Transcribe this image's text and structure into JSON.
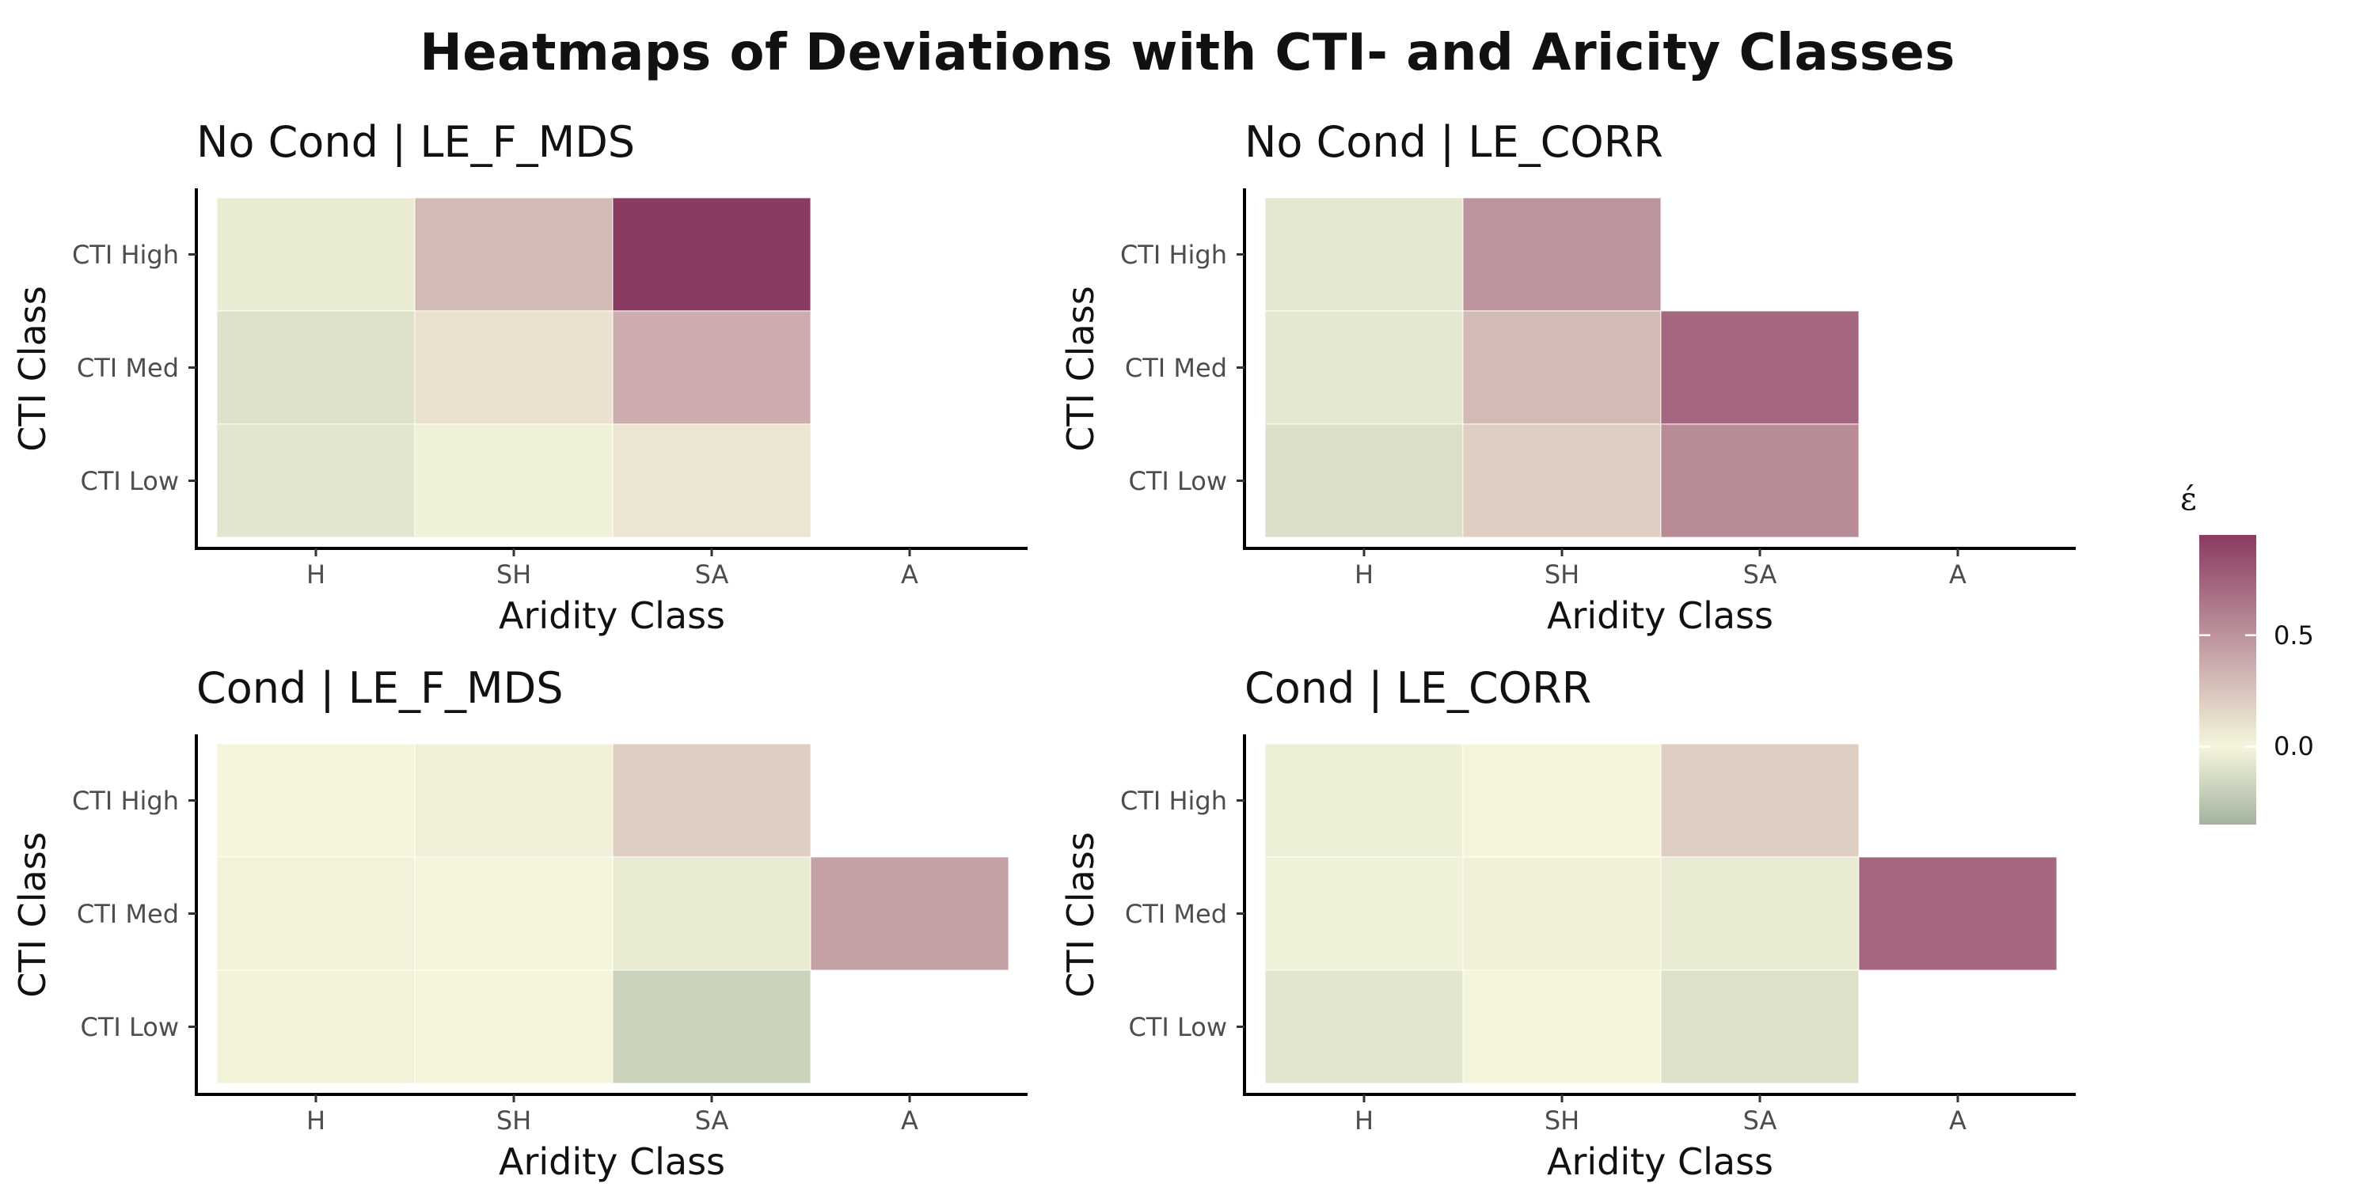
{
  "title": "Heatmaps of Deviations with CTI- and Aricity Classes",
  "chart_data": [
    {
      "type": "heatmap",
      "title": "No Cond | LE_F_MDS",
      "xlabel": "Aridity Class",
      "ylabel": "CTI Class",
      "x_categories": [
        "H",
        "SH",
        "SA",
        "A"
      ],
      "y_categories": [
        "CTI High",
        "CTI Med",
        "CTI Low"
      ],
      "cells": [
        {
          "x": "H",
          "y": "CTI High",
          "value": -0.05
        },
        {
          "x": "SH",
          "y": "CTI High",
          "value": 0.3
        },
        {
          "x": "SA",
          "y": "CTI High",
          "value": 0.95
        },
        {
          "x": "H",
          "y": "CTI Med",
          "value": -0.1
        },
        {
          "x": "SH",
          "y": "CTI Med",
          "value": 0.1
        },
        {
          "x": "SA",
          "y": "CTI Med",
          "value": 0.37
        },
        {
          "x": "H",
          "y": "CTI Low",
          "value": -0.08
        },
        {
          "x": "SH",
          "y": "CTI Low",
          "value": -0.02
        },
        {
          "x": "SA",
          "y": "CTI Low",
          "value": 0.08
        }
      ]
    },
    {
      "type": "heatmap",
      "title": "No Cond | LE_CORR",
      "xlabel": "Aridity Class",
      "ylabel": "CTI Class",
      "x_categories": [
        "H",
        "SH",
        "SA",
        "A"
      ],
      "y_categories": [
        "CTI High",
        "CTI Med",
        "CTI Low"
      ],
      "cells": [
        {
          "x": "H",
          "y": "CTI High",
          "value": -0.07
        },
        {
          "x": "SH",
          "y": "CTI High",
          "value": 0.5
        },
        {
          "x": "H",
          "y": "CTI Med",
          "value": -0.07
        },
        {
          "x": "SH",
          "y": "CTI Med",
          "value": 0.3
        },
        {
          "x": "SA",
          "y": "CTI Med",
          "value": 0.72
        },
        {
          "x": "H",
          "y": "CTI Low",
          "value": -0.11
        },
        {
          "x": "SH",
          "y": "CTI Low",
          "value": 0.2
        },
        {
          "x": "SA",
          "y": "CTI Low",
          "value": 0.54
        }
      ]
    },
    {
      "type": "heatmap",
      "title": "Cond | LE_F_MDS",
      "xlabel": "Aridity Class",
      "ylabel": "CTI Class",
      "x_categories": [
        "H",
        "SH",
        "SA",
        "A"
      ],
      "y_categories": [
        "CTI High",
        "CTI Med",
        "CTI Low"
      ],
      "cells": [
        {
          "x": "H",
          "y": "CTI High",
          "value": 0.0
        },
        {
          "x": "SH",
          "y": "CTI High",
          "value": 0.03
        },
        {
          "x": "SA",
          "y": "CTI High",
          "value": 0.2
        },
        {
          "x": "H",
          "y": "CTI Med",
          "value": 0.02
        },
        {
          "x": "SH",
          "y": "CTI Med",
          "value": 0.0
        },
        {
          "x": "SA",
          "y": "CTI Med",
          "value": -0.05
        },
        {
          "x": "A",
          "y": "CTI Med",
          "value": 0.43
        },
        {
          "x": "H",
          "y": "CTI Low",
          "value": -0.01
        },
        {
          "x": "SH",
          "y": "CTI Low",
          "value": 0.0
        },
        {
          "x": "SA",
          "y": "CTI Low",
          "value": -0.18
        }
      ]
    },
    {
      "type": "heatmap",
      "title": "Cond | LE_CORR",
      "xlabel": "Aridity Class",
      "ylabel": "CTI Class",
      "x_categories": [
        "H",
        "SH",
        "SA",
        "A"
      ],
      "y_categories": [
        "CTI High",
        "CTI Med",
        "CTI Low"
      ],
      "cells": [
        {
          "x": "H",
          "y": "CTI High",
          "value": -0.03
        },
        {
          "x": "SH",
          "y": "CTI High",
          "value": 0.0
        },
        {
          "x": "SA",
          "y": "CTI High",
          "value": 0.2
        },
        {
          "x": "H",
          "y": "CTI Med",
          "value": -0.02
        },
        {
          "x": "SH",
          "y": "CTI Med",
          "value": 0.03
        },
        {
          "x": "SA",
          "y": "CTI Med",
          "value": -0.05
        },
        {
          "x": "A",
          "y": "CTI Med",
          "value": 0.72
        },
        {
          "x": "H",
          "y": "CTI Low",
          "value": -0.08
        },
        {
          "x": "SH",
          "y": "CTI Low",
          "value": 0.0
        },
        {
          "x": "SA",
          "y": "CTI Low",
          "value": -0.1
        }
      ]
    }
  ],
  "legend": {
    "title": "έ",
    "ticks": [
      0.5,
      0.0
    ],
    "min": -0.35,
    "max": 0.95,
    "colors": {
      "low": "#a3b39f",
      "mid": "#f5f5dc",
      "high": "#8b3a62"
    }
  }
}
